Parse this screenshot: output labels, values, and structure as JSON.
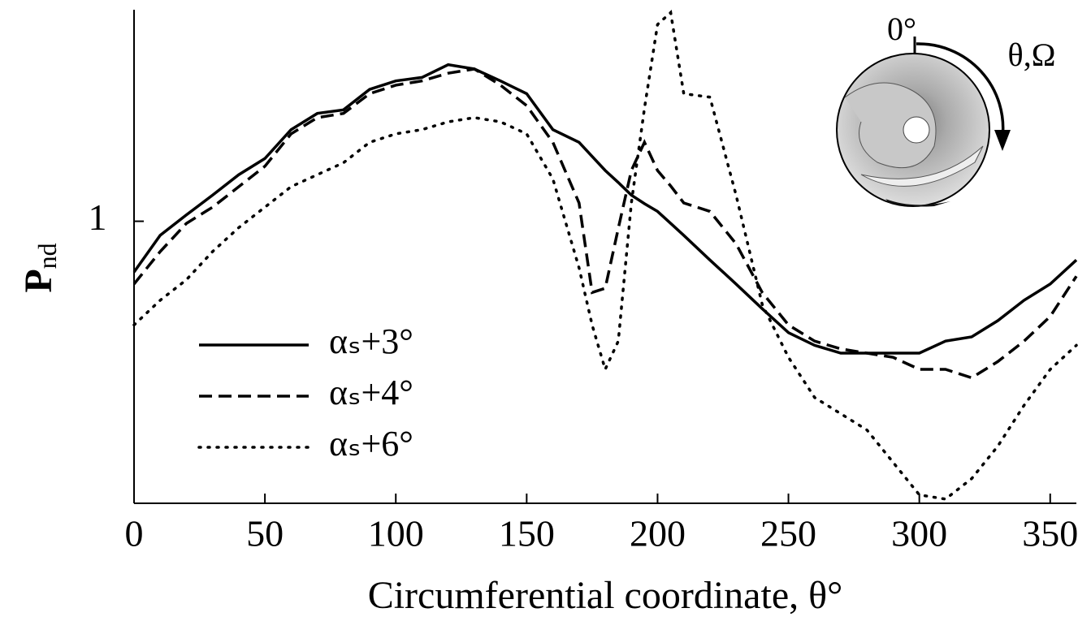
{
  "chart_data": {
    "type": "line",
    "x_label": "Circumferential coordinate, θ°",
    "y_label": "Pnd",
    "annotations": [
      "0°",
      "θ,Ω"
    ],
    "x": [
      0,
      10,
      20,
      30,
      40,
      50,
      60,
      70,
      80,
      90,
      100,
      110,
      120,
      130,
      140,
      150,
      160,
      170,
      175,
      180,
      185,
      190,
      195,
      200,
      205,
      210,
      220,
      230,
      240,
      250,
      260,
      270,
      280,
      290,
      300,
      310,
      320,
      330,
      340,
      350,
      360
    ],
    "series": [
      {
        "name": "αₛ+3°",
        "color": "#000000",
        "dash": "solid",
        "values": [
          0.928,
          0.98,
          1.009,
          1.037,
          1.066,
          1.089,
          1.13,
          1.153,
          1.158,
          1.187,
          1.199,
          1.204,
          1.222,
          1.216,
          1.199,
          1.181,
          1.13,
          1.112,
          1.092,
          1.072,
          1.055,
          1.037,
          1.025,
          1.014,
          0.997,
          0.98,
          0.945,
          0.911,
          0.876,
          0.842,
          0.824,
          0.813,
          0.813,
          0.813,
          0.813,
          0.83,
          0.836,
          0.859,
          0.888,
          0.911,
          0.945
        ]
      },
      {
        "name": "αₛ+4°",
        "color": "#000000",
        "dash": "dashed",
        "values": [
          0.911,
          0.957,
          0.997,
          1.02,
          1.049,
          1.078,
          1.124,
          1.147,
          1.153,
          1.181,
          1.193,
          1.199,
          1.21,
          1.216,
          1.193,
          1.164,
          1.112,
          1.026,
          0.899,
          0.905,
          0.99,
          1.072,
          1.112,
          1.072,
          1.05,
          1.026,
          1.014,
          0.968,
          0.899,
          0.853,
          0.83,
          0.819,
          0.813,
          0.807,
          0.79,
          0.79,
          0.778,
          0.801,
          0.83,
          0.865,
          0.922
        ]
      },
      {
        "name": "αₛ+6°",
        "color": "#000000",
        "dash": "dotted",
        "values": [
          0.853,
          0.888,
          0.917,
          0.957,
          0.991,
          1.02,
          1.049,
          1.066,
          1.083,
          1.112,
          1.124,
          1.13,
          1.141,
          1.147,
          1.141,
          1.124,
          1.06,
          0.934,
          0.853,
          0.79,
          0.83,
          1.026,
          1.16,
          1.279,
          1.296,
          1.181,
          1.176,
          1.037,
          0.882,
          0.807,
          0.75,
          0.727,
          0.704,
          0.658,
          0.612,
          0.606,
          0.635,
          0.681,
          0.739,
          0.79,
          0.824
        ]
      }
    ],
    "xlim": [
      0,
      360
    ],
    "xticks": [
      0,
      50,
      100,
      150,
      200,
      250,
      300,
      350
    ],
    "ylim": [
      0.6,
      1.3
    ],
    "yticks": [
      1
    ],
    "grid": false,
    "legend": "lower-left"
  }
}
